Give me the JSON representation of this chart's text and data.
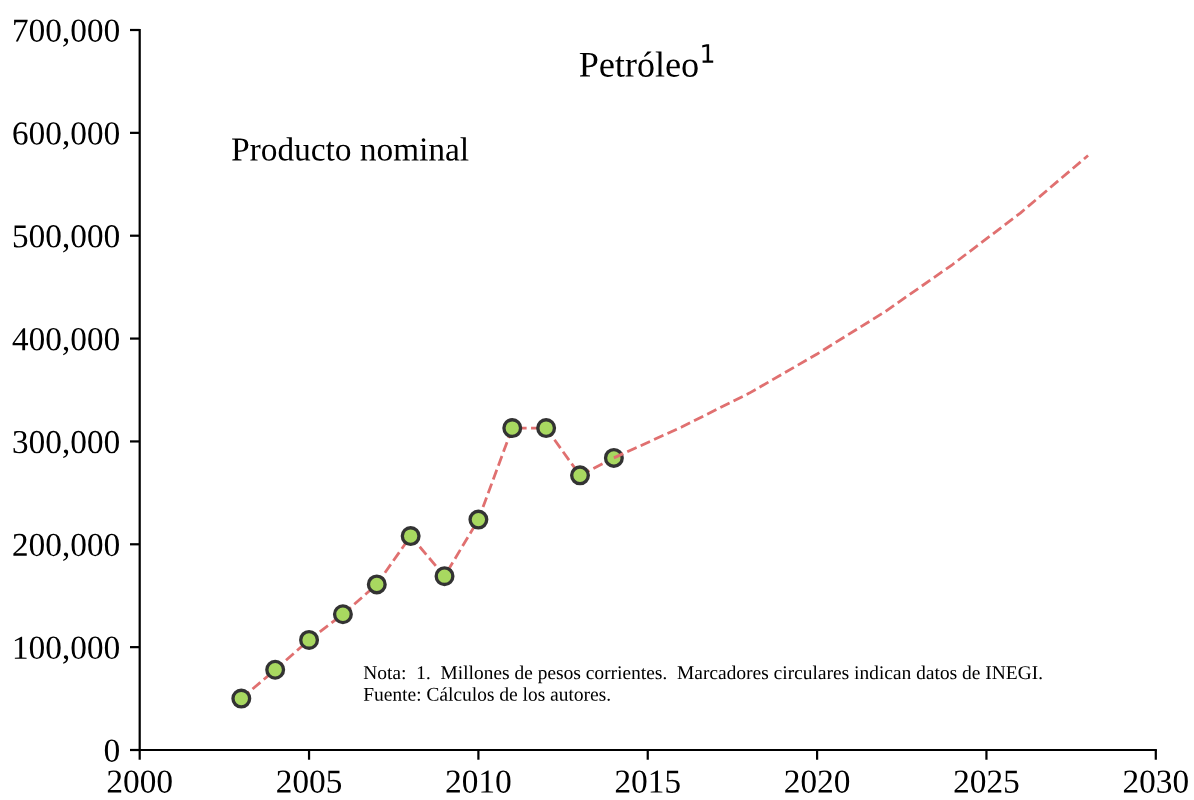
{
  "chart_data": {
    "type": "line",
    "title": "Petróleo$^{1}$",
    "xlim": [
      2000,
      2030
    ],
    "xticks": [
      2000,
      2005,
      2010,
      2015,
      2020,
      2025,
      2030
    ],
    "ylim": [
      0,
      700000
    ],
    "yticks": [
      0,
      {
        "value": 100000,
        "label": "100,000"
      },
      {
        "value": 200000,
        "label": "200,000"
      },
      {
        "value": 300000,
        "label": "300,000"
      },
      {
        "value": 400000,
        "label": "400,000"
      },
      {
        "value": 500000,
        "label": "500,000"
      },
      {
        "value": 600000,
        "label": "600,000"
      },
      {
        "value": 700000,
        "label": "700,000"
      }
    ],
    "grid": false,
    "legend": false,
    "line_style": "dashed",
    "series": [
      {
        "color": "#e07070",
        "marker": "circle",
        "x": [
          2003,
          2004,
          2005,
          2006,
          2007,
          2008,
          2009,
          2010,
          2011,
          2012,
          2013,
          2014
        ],
        "values": [
          50000,
          78000,
          107000,
          132000,
          161000,
          208000,
          169000,
          224000,
          313000,
          313000,
          267000,
          284000
        ]
      },
      {
        "color": "#e07070",
        "marker": "none",
        "x": [
          2014,
          2016,
          2018,
          2020,
          2022,
          2024,
          2026,
          2028
        ],
        "values": [
          284000,
          314000,
          347000,
          385000,
          426000,
          472000,
          522000,
          578000
        ]
      }
    ],
    "annotations": [
      "Producto nominal",
      "Nota:  1.  Millones de pesos corrientes.  Marcadores circulares indican datos de INEGI.",
      "Fuente: Cálculos de los autores."
    ]
  }
}
